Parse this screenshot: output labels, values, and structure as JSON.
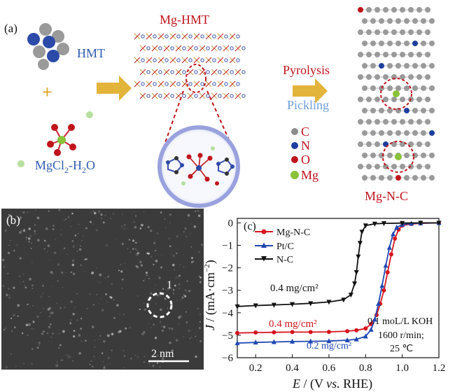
{
  "panel_a": {
    "label": "(a)",
    "hmt_label": "HMT",
    "plus": "+",
    "mgcl_label": "MgCl",
    "mgcl_sub": "2",
    "mgcl_tail": "-H",
    "h2o_sub": "2",
    "h2o_tail": "O",
    "mg_hmt_label": "Mg-HMT",
    "pyrolysis": "Pyrolysis",
    "pickling": "Pickling",
    "legend": [
      {
        "symbol": "C",
        "color": "#8c8c8c"
      },
      {
        "symbol": "N",
        "color": "#1f3f9e"
      },
      {
        "symbol": "O",
        "color": "#c0141c"
      },
      {
        "symbol": "Mg",
        "color": "#8ac23a"
      }
    ],
    "product_label": "Mg-N-C",
    "colors": {
      "blue_text": "#2f5cb0",
      "red_text": "#c0141c",
      "arrow": "#e3b43a",
      "pickling": "#6fa0dc"
    }
  },
  "panel_b": {
    "label": "(b)",
    "marker": "1",
    "scalebar": "2 nm"
  },
  "panel_c": {
    "label": "(c)",
    "annot_nc": "0.4 mg/cm²",
    "annot_mgnc": "0.4 mg/cm²",
    "annot_ptc": "0.2 mg/cm²",
    "cond_1": "0.1 moL/L KOH",
    "cond_2": "1600 r/min;",
    "cond_3": "25 ℃"
  },
  "chart_data": {
    "type": "line",
    "xlabel_E": "E",
    "xlabel_rest": " / (V ",
    "xlabel_vs": "vs.",
    "xlabel_end": " RHE)",
    "ylabel_J": "J",
    "ylabel_rest": " / (mA·cm",
    "ylabel_sup": "−2",
    "ylabel_end": ")",
    "xlim": [
      0.1,
      1.2
    ],
    "ylim": [
      -6,
      0.2
    ],
    "x_ticks": [
      0.2,
      0.4,
      0.6,
      0.8,
      1.0,
      1.2
    ],
    "x_tick_labels": [
      "0.2",
      "0.4",
      "0.6",
      "0.8",
      "1.0",
      "1.2"
    ],
    "y_ticks": [
      0,
      -1,
      -2,
      -3,
      -4,
      -5,
      -6
    ],
    "y_tick_labels": [
      "0",
      "−1",
      "−2",
      "−3",
      "−4",
      "−5",
      "−6"
    ],
    "legend_position": "top-left",
    "series": [
      {
        "name": "Mg-N-C",
        "color": "#d7141e",
        "marker": "circle",
        "x": [
          0.1,
          0.2,
          0.3,
          0.4,
          0.5,
          0.6,
          0.7,
          0.75,
          0.8,
          0.83,
          0.86,
          0.88,
          0.9,
          0.92,
          0.94,
          0.96,
          0.98,
          1.0,
          1.05,
          1.1,
          1.2
        ],
        "y": [
          -4.9,
          -4.88,
          -4.87,
          -4.86,
          -4.86,
          -4.85,
          -4.82,
          -4.78,
          -4.7,
          -4.5,
          -4.1,
          -3.6,
          -3.0,
          -2.2,
          -1.4,
          -0.7,
          -0.3,
          -0.12,
          -0.05,
          -0.02,
          0.0
        ]
      },
      {
        "name": "Pt/C",
        "color": "#1f48b4",
        "marker": "triangle-up",
        "x": [
          0.1,
          0.2,
          0.3,
          0.4,
          0.5,
          0.6,
          0.7,
          0.75,
          0.8,
          0.83,
          0.85,
          0.87,
          0.89,
          0.91,
          0.93,
          0.95,
          0.97,
          1.0,
          1.05,
          1.1,
          1.2
        ],
        "y": [
          -5.35,
          -5.32,
          -5.3,
          -5.28,
          -5.27,
          -5.26,
          -5.22,
          -5.18,
          -5.05,
          -4.75,
          -4.3,
          -3.6,
          -2.8,
          -1.9,
          -1.1,
          -0.5,
          -0.2,
          -0.08,
          -0.03,
          -0.01,
          0.0
        ]
      },
      {
        "name": "N-C",
        "color": "#111111",
        "marker": "triangle-down",
        "x": [
          0.1,
          0.2,
          0.3,
          0.4,
          0.5,
          0.6,
          0.68,
          0.72,
          0.74,
          0.75,
          0.76,
          0.77,
          0.78,
          0.8,
          0.85,
          0.9,
          1.0,
          1.1,
          1.2
        ],
        "y": [
          -3.72,
          -3.68,
          -3.65,
          -3.62,
          -3.58,
          -3.52,
          -3.42,
          -3.2,
          -2.7,
          -2.2,
          -1.5,
          -0.9,
          -0.4,
          -0.12,
          -0.04,
          -0.02,
          -0.01,
          0.0,
          0.0
        ]
      }
    ]
  }
}
